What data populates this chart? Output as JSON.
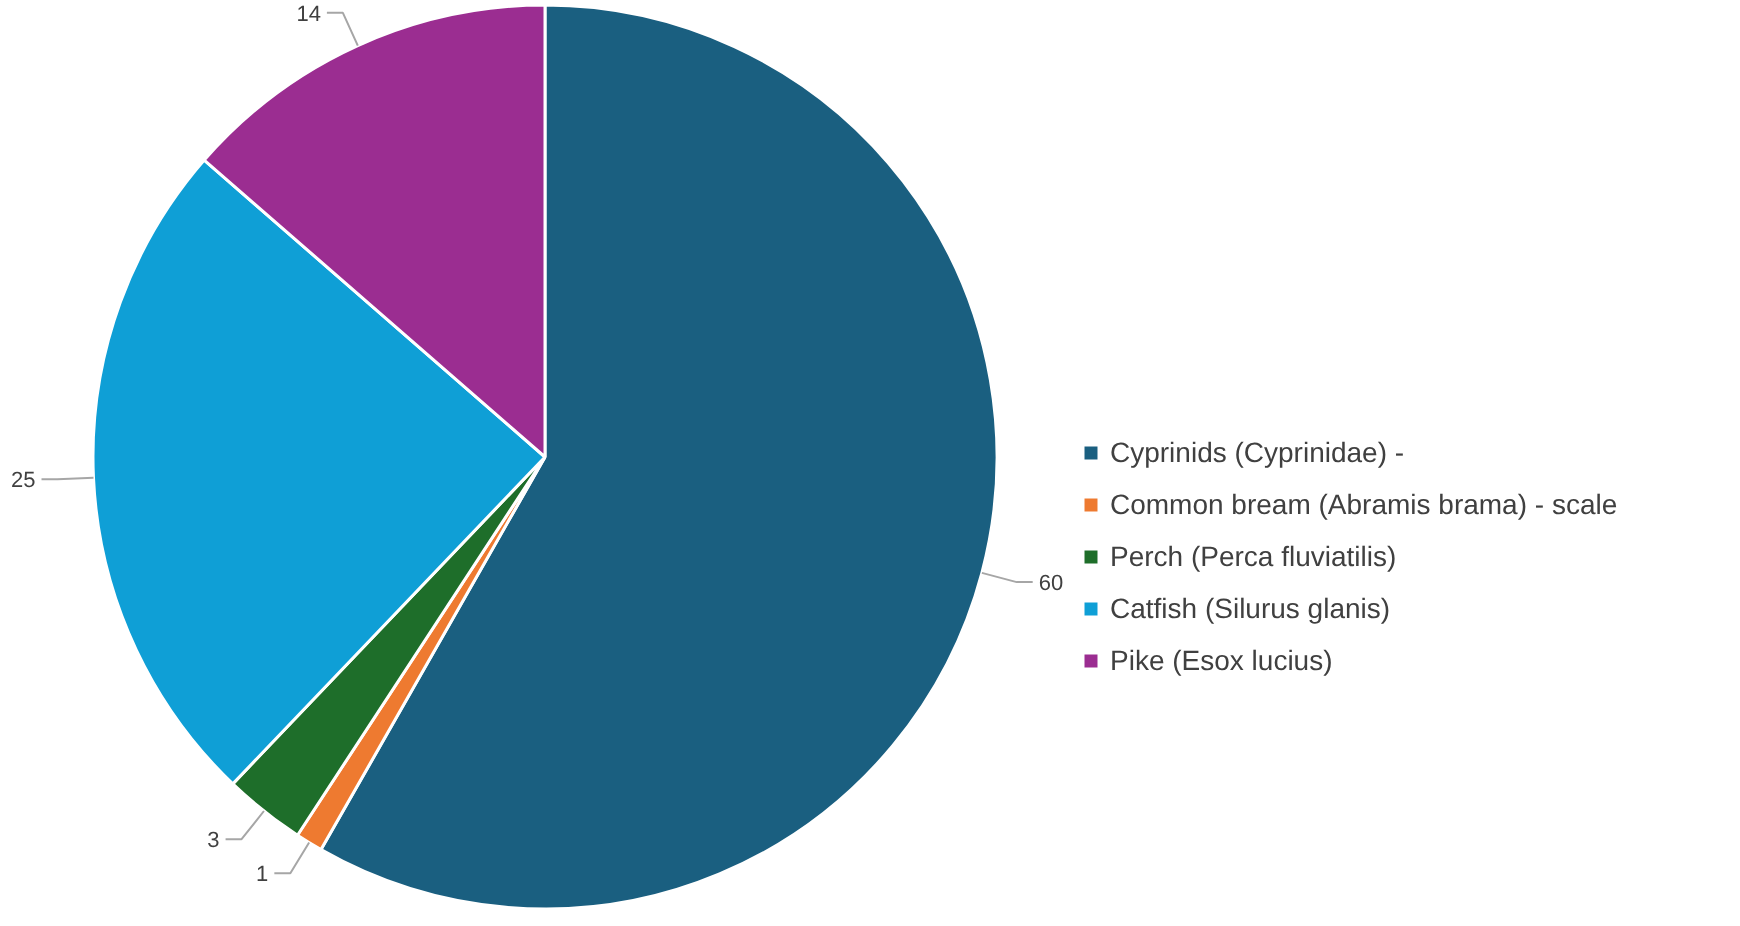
{
  "chart_data": {
    "type": "pie",
    "categories": [
      "Cyprinids (Cyprinidae) -",
      "Common bream (Abramis brama) - scale",
      "Perch (Perca fluviatilis)",
      "Catfish (Silurus glanis)",
      "Pike (Esox lucius)"
    ],
    "values": [
      60,
      1,
      3,
      25,
      14
    ],
    "colors": [
      "#1a5f80",
      "#ee7a30",
      "#1e6e2a",
      "#0f9fd6",
      "#9b2d91"
    ],
    "data_labels": true,
    "legend": "right"
  }
}
